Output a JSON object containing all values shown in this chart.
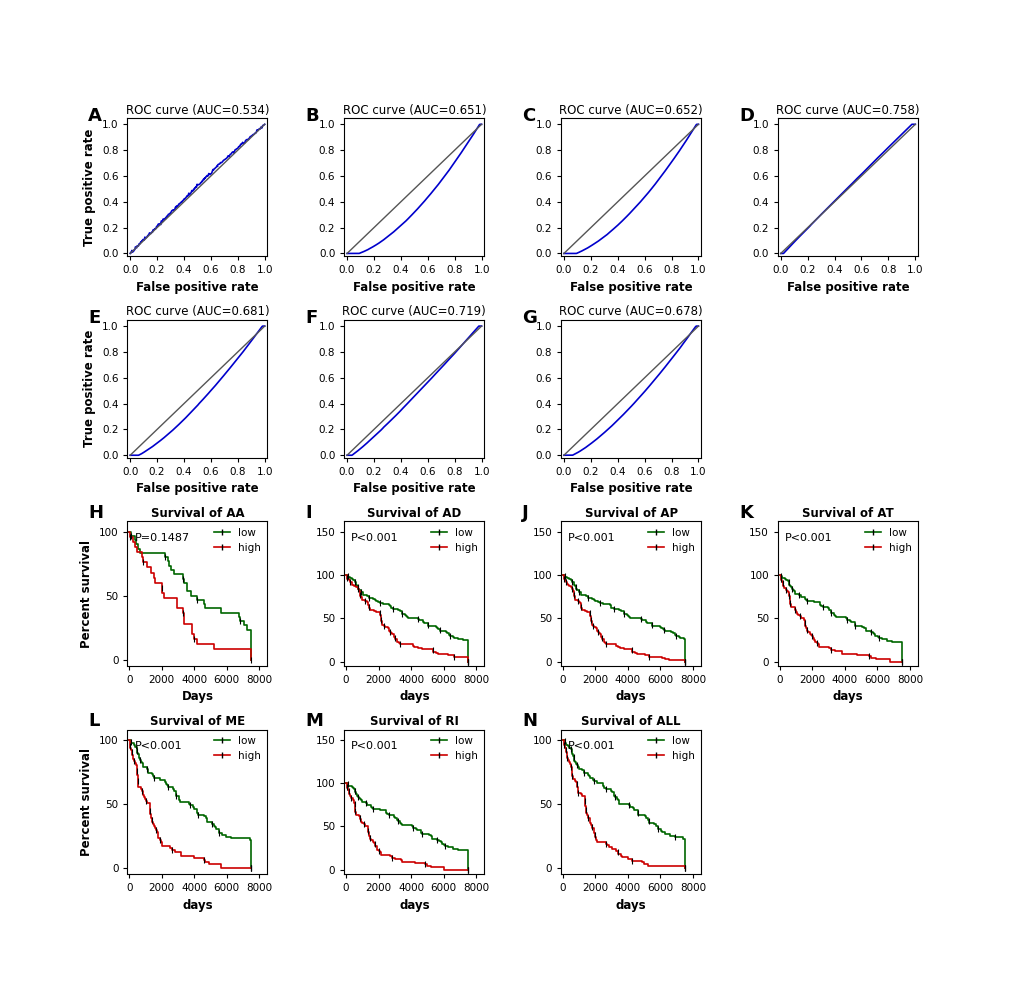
{
  "roc_panels": [
    {
      "label": "A",
      "title": "ROC curve (AUC=0.534)",
      "auc": 0.534
    },
    {
      "label": "B",
      "title": "ROC curve (AUC=0.651)",
      "auc": 0.651
    },
    {
      "label": "C",
      "title": "ROC curve (AUC=0.652)",
      "auc": 0.652
    },
    {
      "label": "D",
      "title": "ROC curve (AUC=0.758)",
      "auc": 0.758
    },
    {
      "label": "E",
      "title": "ROC curve (AUC=0.681)",
      "auc": 0.681
    },
    {
      "label": "F",
      "title": "ROC curve (AUC=0.719)",
      "auc": 0.719
    },
    {
      "label": "G",
      "title": "ROC curve (AUC=0.678)",
      "auc": 0.678
    }
  ],
  "km_panels": [
    {
      "label": "H",
      "title": "Survival of AA",
      "pval": "P=0.1487",
      "ymax": 100,
      "yticks": [
        0,
        50,
        100
      ]
    },
    {
      "label": "I",
      "title": "Survival of AD",
      "pval": "P<0.001",
      "ymax": 150,
      "yticks": [
        0,
        50,
        100,
        150
      ]
    },
    {
      "label": "J",
      "title": "Survival of AP",
      "pval": "P<0.001",
      "ymax": 150,
      "yticks": [
        0,
        50,
        100,
        150
      ]
    },
    {
      "label": "K",
      "title": "Survival of AT",
      "pval": "P<0.001",
      "ymax": 150,
      "yticks": [
        0,
        50,
        100,
        150
      ]
    },
    {
      "label": "L",
      "title": "Survival of ME",
      "pval": "P<0.001",
      "ymax": 100,
      "yticks": [
        0,
        50,
        100
      ]
    },
    {
      "label": "M",
      "title": "Survival of RI",
      "pval": "P<0.001",
      "ymax": 150,
      "yticks": [
        0,
        50,
        100,
        150
      ]
    },
    {
      "label": "N",
      "title": "Survival of ALL",
      "pval": "P<0.001",
      "ymax": 100,
      "yticks": [
        0,
        50,
        100
      ]
    }
  ],
  "roc_color": "#0000CC",
  "diag_color": "#555555",
  "low_color": "#006600",
  "high_color": "#CC0000",
  "km_tick_color": "black",
  "xlabel_roc": "False positive rate",
  "ylabel_roc": "True positive rate",
  "xlabel_km": "days",
  "ylabel_km": "Percent survival",
  "xlabel_km_H": "Days",
  "xticks_km": [
    0,
    2000,
    4000,
    6000,
    8000
  ],
  "roc_yticks": [
    0.0,
    0.2,
    0.4,
    0.6,
    0.8,
    1.0
  ],
  "roc_xticks": [
    0.0,
    0.2,
    0.4,
    0.6,
    0.8,
    1.0
  ]
}
